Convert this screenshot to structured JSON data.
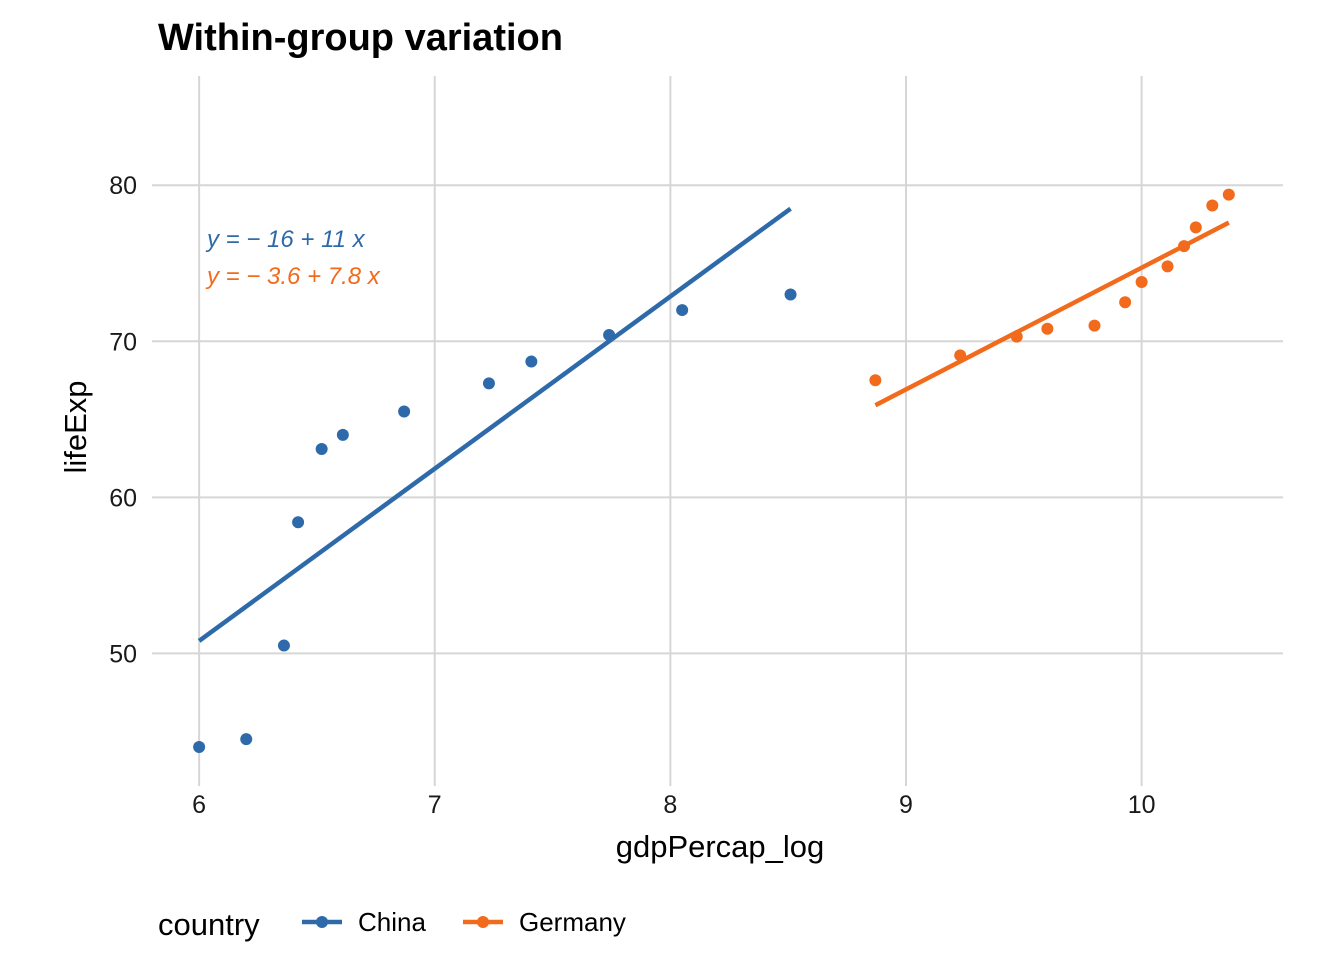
{
  "chart_data": {
    "type": "scatter",
    "title": "Within-group variation",
    "xlabel": "gdpPercap_log",
    "ylabel": "lifeExp",
    "xlim": [
      5.8,
      10.6
    ],
    "ylim": [
      41.5,
      87
    ],
    "x_ticks": [
      6,
      7,
      8,
      9,
      10
    ],
    "y_ticks": [
      50,
      60,
      70,
      80
    ],
    "grid": true,
    "legend": {
      "title": "country",
      "position": "bottom-left"
    },
    "series": [
      {
        "name": "China",
        "color": "#2e6aaa",
        "points": [
          [
            6.0,
            44.0
          ],
          [
            6.2,
            44.5
          ],
          [
            6.36,
            50.5
          ],
          [
            6.42,
            58.4
          ],
          [
            6.52,
            63.1
          ],
          [
            6.61,
            64.0
          ],
          [
            6.87,
            65.5
          ],
          [
            7.23,
            67.3
          ],
          [
            7.41,
            68.7
          ],
          [
            7.74,
            70.4
          ],
          [
            8.05,
            72.0
          ],
          [
            8.51,
            73.0
          ]
        ],
        "fit": {
          "x_start": 6.0,
          "y_start": 50.8,
          "x_end": 8.51,
          "y_end": 78.5
        },
        "equation": "y = − 16 + 11 x"
      },
      {
        "name": "Germany",
        "color": "#f26b1d",
        "points": [
          [
            8.87,
            67.5
          ],
          [
            9.23,
            69.1
          ],
          [
            9.47,
            70.3
          ],
          [
            9.6,
            70.8
          ],
          [
            9.8,
            71.0
          ],
          [
            9.93,
            72.5
          ],
          [
            10.0,
            73.8
          ],
          [
            10.11,
            74.8
          ],
          [
            10.18,
            76.1
          ],
          [
            10.23,
            77.3
          ],
          [
            10.3,
            78.7
          ],
          [
            10.37,
            79.4
          ]
        ],
        "fit": {
          "x_start": 8.87,
          "y_start": 65.9,
          "x_end": 10.37,
          "y_end": 77.6
        },
        "equation": "y = − 3.6 + 7.8 x"
      }
    ]
  }
}
